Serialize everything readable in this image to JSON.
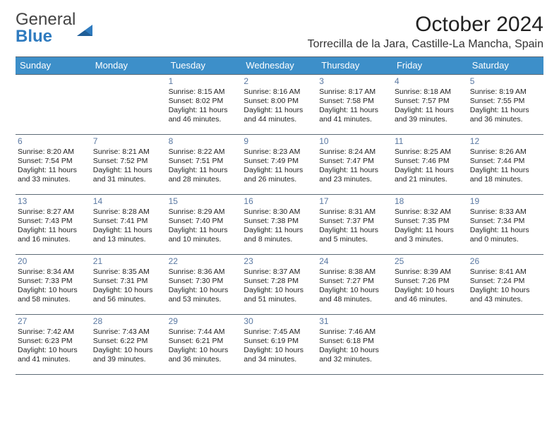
{
  "logo": {
    "word1": "General",
    "word2": "Blue"
  },
  "title": "October 2024",
  "location": "Torrecilla de la Jara, Castille-La Mancha, Spain",
  "colors": {
    "header_bg": "#3d8fc9",
    "header_text": "#ffffff",
    "rule": "#5c6a76",
    "daynum": "#5a78a2",
    "logo_blue": "#2f7bbf"
  },
  "columns": [
    "Sunday",
    "Monday",
    "Tuesday",
    "Wednesday",
    "Thursday",
    "Friday",
    "Saturday"
  ],
  "weeks": [
    [
      null,
      null,
      {
        "n": "1",
        "sunrise": "8:15 AM",
        "sunset": "8:02 PM",
        "day": "11 hours and 46 minutes."
      },
      {
        "n": "2",
        "sunrise": "8:16 AM",
        "sunset": "8:00 PM",
        "day": "11 hours and 44 minutes."
      },
      {
        "n": "3",
        "sunrise": "8:17 AM",
        "sunset": "7:58 PM",
        "day": "11 hours and 41 minutes."
      },
      {
        "n": "4",
        "sunrise": "8:18 AM",
        "sunset": "7:57 PM",
        "day": "11 hours and 39 minutes."
      },
      {
        "n": "5",
        "sunrise": "8:19 AM",
        "sunset": "7:55 PM",
        "day": "11 hours and 36 minutes."
      }
    ],
    [
      {
        "n": "6",
        "sunrise": "8:20 AM",
        "sunset": "7:54 PM",
        "day": "11 hours and 33 minutes."
      },
      {
        "n": "7",
        "sunrise": "8:21 AM",
        "sunset": "7:52 PM",
        "day": "11 hours and 31 minutes."
      },
      {
        "n": "8",
        "sunrise": "8:22 AM",
        "sunset": "7:51 PM",
        "day": "11 hours and 28 minutes."
      },
      {
        "n": "9",
        "sunrise": "8:23 AM",
        "sunset": "7:49 PM",
        "day": "11 hours and 26 minutes."
      },
      {
        "n": "10",
        "sunrise": "8:24 AM",
        "sunset": "7:47 PM",
        "day": "11 hours and 23 minutes."
      },
      {
        "n": "11",
        "sunrise": "8:25 AM",
        "sunset": "7:46 PM",
        "day": "11 hours and 21 minutes."
      },
      {
        "n": "12",
        "sunrise": "8:26 AM",
        "sunset": "7:44 PM",
        "day": "11 hours and 18 minutes."
      }
    ],
    [
      {
        "n": "13",
        "sunrise": "8:27 AM",
        "sunset": "7:43 PM",
        "day": "11 hours and 16 minutes."
      },
      {
        "n": "14",
        "sunrise": "8:28 AM",
        "sunset": "7:41 PM",
        "day": "11 hours and 13 minutes."
      },
      {
        "n": "15",
        "sunrise": "8:29 AM",
        "sunset": "7:40 PM",
        "day": "11 hours and 10 minutes."
      },
      {
        "n": "16",
        "sunrise": "8:30 AM",
        "sunset": "7:38 PM",
        "day": "11 hours and 8 minutes."
      },
      {
        "n": "17",
        "sunrise": "8:31 AM",
        "sunset": "7:37 PM",
        "day": "11 hours and 5 minutes."
      },
      {
        "n": "18",
        "sunrise": "8:32 AM",
        "sunset": "7:35 PM",
        "day": "11 hours and 3 minutes."
      },
      {
        "n": "19",
        "sunrise": "8:33 AM",
        "sunset": "7:34 PM",
        "day": "11 hours and 0 minutes."
      }
    ],
    [
      {
        "n": "20",
        "sunrise": "8:34 AM",
        "sunset": "7:33 PM",
        "day": "10 hours and 58 minutes."
      },
      {
        "n": "21",
        "sunrise": "8:35 AM",
        "sunset": "7:31 PM",
        "day": "10 hours and 56 minutes."
      },
      {
        "n": "22",
        "sunrise": "8:36 AM",
        "sunset": "7:30 PM",
        "day": "10 hours and 53 minutes."
      },
      {
        "n": "23",
        "sunrise": "8:37 AM",
        "sunset": "7:28 PM",
        "day": "10 hours and 51 minutes."
      },
      {
        "n": "24",
        "sunrise": "8:38 AM",
        "sunset": "7:27 PM",
        "day": "10 hours and 48 minutes."
      },
      {
        "n": "25",
        "sunrise": "8:39 AM",
        "sunset": "7:26 PM",
        "day": "10 hours and 46 minutes."
      },
      {
        "n": "26",
        "sunrise": "8:41 AM",
        "sunset": "7:24 PM",
        "day": "10 hours and 43 minutes."
      }
    ],
    [
      {
        "n": "27",
        "sunrise": "7:42 AM",
        "sunset": "6:23 PM",
        "day": "10 hours and 41 minutes."
      },
      {
        "n": "28",
        "sunrise": "7:43 AM",
        "sunset": "6:22 PM",
        "day": "10 hours and 39 minutes."
      },
      {
        "n": "29",
        "sunrise": "7:44 AM",
        "sunset": "6:21 PM",
        "day": "10 hours and 36 minutes."
      },
      {
        "n": "30",
        "sunrise": "7:45 AM",
        "sunset": "6:19 PM",
        "day": "10 hours and 34 minutes."
      },
      {
        "n": "31",
        "sunrise": "7:46 AM",
        "sunset": "6:18 PM",
        "day": "10 hours and 32 minutes."
      },
      null,
      null
    ]
  ],
  "labels": {
    "sunrise": "Sunrise: ",
    "sunset": "Sunset: ",
    "daylight": "Daylight: "
  }
}
